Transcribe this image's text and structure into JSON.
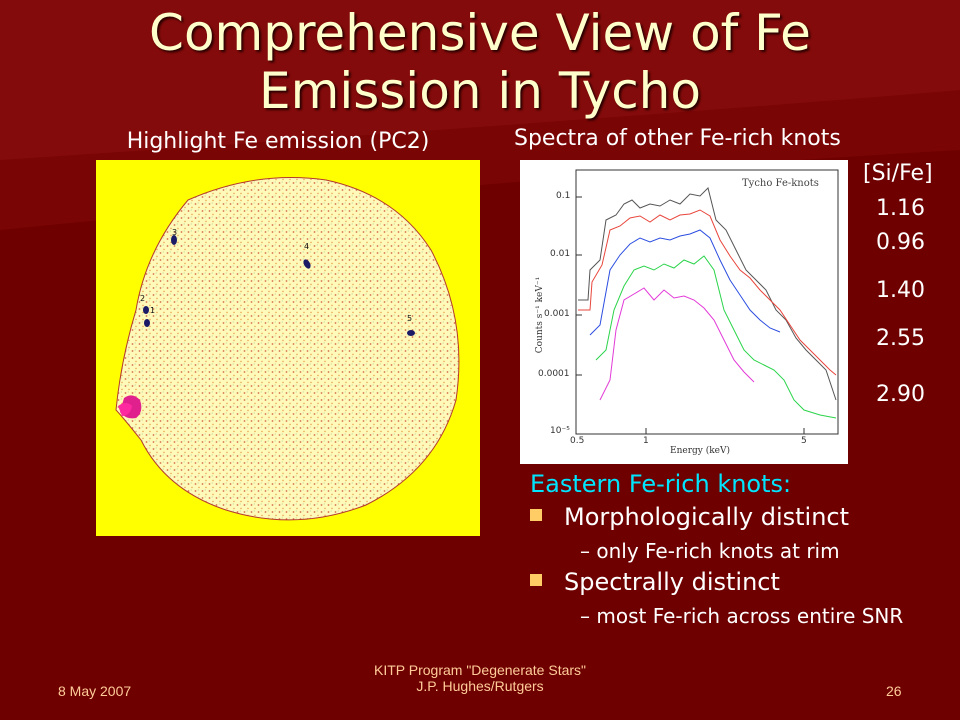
{
  "slide": {
    "title_line1": "Comprehensive View of Fe",
    "title_line2": "Emission in Tycho",
    "left_caption": "Highlight Fe emission (PC2)",
    "right_caption": "Spectra of other Fe-rich knots",
    "colors": {
      "background": "#6e0000",
      "title": "#ffffcc",
      "accent": "#00e5ff",
      "bullet": "#ffcc66",
      "map_bg": "#ffff00"
    }
  },
  "map": {
    "knot_labels": [
      "1",
      "2",
      "3",
      "4",
      "5"
    ]
  },
  "spectrum": {
    "plot_label": "Tycho Fe-knots",
    "ylabel": "Counts s⁻¹ keV⁻¹",
    "xlabel": "Energy (keV)",
    "yticks": [
      "0.1",
      "0.01",
      "0.001",
      "0.0001",
      "10⁻⁵"
    ],
    "xticks": [
      "0.5",
      "1",
      "5"
    ]
  },
  "si_fe": {
    "header": "[Si/Fe]",
    "values": [
      "1.16",
      "0.96",
      "1.40",
      "2.55",
      "2.90"
    ]
  },
  "notes": {
    "heading": "Eastern Fe-rich knots:",
    "bullets": [
      {
        "text": "Morphologically distinct",
        "sub": "only Fe-rich knots at rim"
      },
      {
        "text": "Spectrally distinct",
        "sub": "most Fe-rich across entire SNR"
      }
    ]
  },
  "footer": {
    "date": "8 May 2007",
    "program_line1": "KITP Program \"Degenerate Stars\"",
    "program_line2": "J.P. Hughes/Rutgers",
    "page": "26"
  }
}
